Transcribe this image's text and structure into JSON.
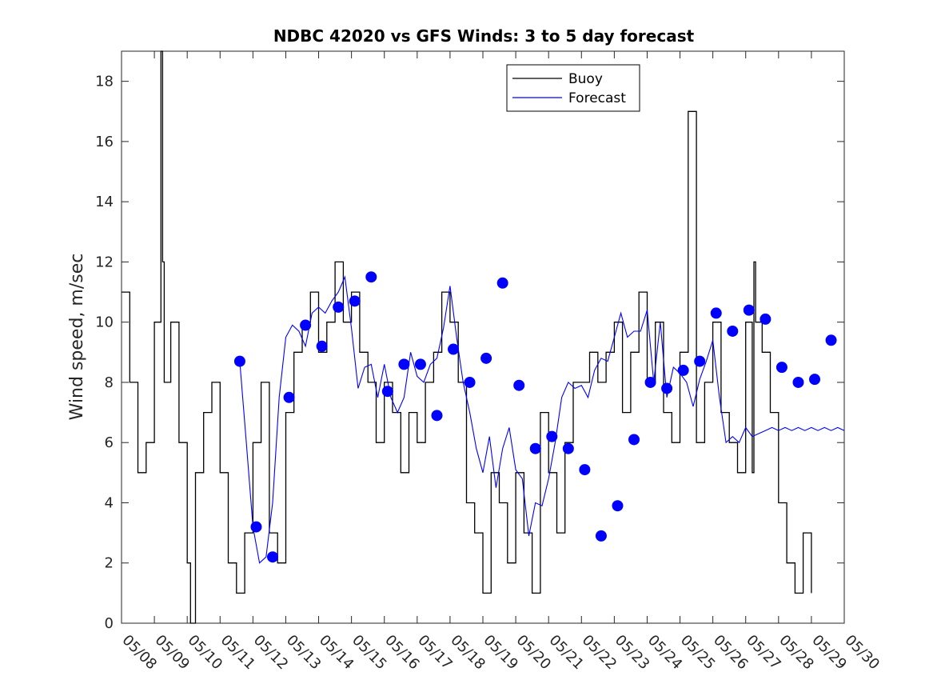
{
  "chart_data": {
    "type": "line",
    "title": "NDBC 42020 vs GFS Winds: 3 to 5 day forecast",
    "xlabel": "",
    "ylabel": "Wind speed, m/sec",
    "xlim": [
      0,
      22
    ],
    "ylim": [
      0,
      19
    ],
    "x_tick_labels": [
      "05/08",
      "05/09",
      "05/10",
      "05/11",
      "05/12",
      "05/13",
      "05/14",
      "05/15",
      "05/16",
      "05/17",
      "05/18",
      "05/19",
      "05/20",
      "05/21",
      "05/22",
      "05/23",
      "05/24",
      "05/25",
      "05/26",
      "05/27",
      "05/28",
      "05/29",
      "05/30"
    ],
    "y_ticks": [
      0,
      2,
      4,
      6,
      8,
      10,
      12,
      14,
      16,
      18
    ],
    "legend": {
      "placement": "top-right",
      "entries": [
        "Buoy",
        "Forecast"
      ]
    },
    "colors": {
      "buoy": "#000000",
      "forecast": "#0000ff"
    },
    "series": [
      {
        "name": "Buoy",
        "color": "#000000",
        "x": [
          0.0,
          0.25,
          0.5,
          0.75,
          1.0,
          1.2,
          1.25,
          1.3,
          1.5,
          1.75,
          2.0,
          2.1,
          2.25,
          2.5,
          2.75,
          3.0,
          3.25,
          3.5,
          3.75,
          4.0,
          4.25,
          4.5,
          4.75,
          5.0,
          5.25,
          5.5,
          5.75,
          6.0,
          6.25,
          6.5,
          6.75,
          7.0,
          7.25,
          7.5,
          7.75,
          8.0,
          8.25,
          8.5,
          8.75,
          9.0,
          9.25,
          9.5,
          9.75,
          10.0,
          10.25,
          10.5,
          10.75,
          11.0,
          11.25,
          11.5,
          11.75,
          12.0,
          12.25,
          12.5,
          12.75,
          13.0,
          13.25,
          13.5,
          13.75,
          14.0,
          14.25,
          14.5,
          14.75,
          15.0,
          15.25,
          15.5,
          15.75,
          16.0,
          16.25,
          16.5,
          16.75,
          17.0,
          17.25,
          17.5,
          17.75,
          18.0,
          18.25,
          18.5,
          18.75,
          19.0,
          19.2,
          19.25,
          19.3,
          19.5,
          19.75,
          20.0,
          20.25,
          20.5,
          20.75,
          21.0,
          21.25,
          21.5
        ],
        "values": [
          11,
          8,
          5,
          6,
          10,
          19,
          12,
          8,
          10,
          6,
          2,
          0,
          5,
          7,
          8,
          5,
          2,
          1,
          3,
          6,
          8,
          3,
          2,
          7,
          9,
          10,
          11,
          9,
          10,
          12,
          10,
          11,
          9,
          8,
          6,
          8,
          7,
          5,
          7,
          6,
          8,
          9,
          11,
          10,
          8,
          4,
          3,
          1,
          5,
          4,
          2,
          5,
          3,
          1,
          7,
          5,
          3,
          6,
          8,
          8,
          9,
          8,
          9,
          10,
          7,
          9,
          11,
          8,
          10,
          7,
          6,
          9,
          17,
          6,
          8,
          10,
          7,
          6,
          5,
          10,
          5,
          12,
          10,
          9,
          7,
          4,
          2,
          1,
          3,
          1,
          null,
          null
        ],
        "note": ""
      },
      {
        "name": "Forecast",
        "color": "#0000ff",
        "x": [
          3.6,
          3.8,
          4.0,
          4.2,
          4.4,
          4.6,
          4.8,
          5.0,
          5.2,
          5.4,
          5.6,
          5.8,
          6.0,
          6.2,
          6.4,
          6.6,
          6.8,
          7.0,
          7.2,
          7.4,
          7.6,
          7.8,
          8.0,
          8.2,
          8.4,
          8.6,
          8.8,
          9.0,
          9.2,
          9.4,
          9.6,
          9.8,
          10.0,
          10.2,
          10.4,
          10.6,
          10.8,
          11.0,
          11.2,
          11.4,
          11.6,
          11.8,
          12.0,
          12.2,
          12.4,
          12.6,
          12.8,
          13.0,
          13.2,
          13.4,
          13.6,
          13.8,
          14.0,
          14.2,
          14.4,
          14.6,
          14.8,
          15.0,
          15.2,
          15.4,
          15.6,
          15.8,
          16.0,
          16.2,
          16.4,
          16.6,
          16.8,
          17.0,
          17.2,
          17.4,
          17.6,
          17.8,
          18.0,
          18.2,
          18.4,
          18.6,
          18.8,
          19.0,
          19.2,
          19.4,
          19.6,
          19.8,
          20.0,
          20.2,
          20.4,
          20.6,
          20.8,
          21.0,
          21.2,
          21.4,
          21.6,
          21.8,
          22.0
        ],
        "values": [
          8.7,
          6,
          3.2,
          2,
          2.2,
          4,
          7.5,
          9.5,
          9.9,
          9.7,
          9.2,
          10.3,
          10.5,
          10.3,
          10.7,
          11,
          11.5,
          9.8,
          7.8,
          8.5,
          8.6,
          7.5,
          8.6,
          7.5,
          7,
          7.5,
          9,
          8.2,
          8,
          8.6,
          8.8,
          9.8,
          11.2,
          9.5,
          8,
          7,
          5.8,
          5,
          6.2,
          4.5,
          5.8,
          6.5,
          5.1,
          4.8,
          2.9,
          4,
          3.9,
          4.8,
          6,
          7.5,
          8,
          7.8,
          7.9,
          7.5,
          8.4,
          8.8,
          8.7,
          9.5,
          10.3,
          9.5,
          9.7,
          9.7,
          10.4,
          8,
          10,
          7.5,
          8.5,
          8.3,
          8,
          7.2,
          8.1,
          8.7,
          9.4,
          7.5,
          6,
          6.2,
          6,
          6.5,
          6.2,
          6.3,
          6.4,
          6.5,
          6.4,
          6.5,
          6.4,
          6.5,
          6.4,
          6.5,
          6.4,
          6.5,
          6.4,
          6.5,
          6.4
        ]
      }
    ],
    "forecast_markers": {
      "x": [
        3.6,
        4.1,
        4.6,
        5.1,
        5.6,
        6.1,
        6.6,
        7.1,
        7.6,
        8.1,
        8.6,
        9.1,
        9.6,
        10.1,
        10.6,
        11.1,
        11.6,
        12.1,
        12.6,
        13.1,
        13.6,
        14.1,
        14.6,
        15.1,
        15.6,
        16.1,
        16.6,
        17.1,
        17.6,
        18.1,
        18.6,
        19.1,
        19.6,
        20.1,
        20.6,
        21.1,
        21.6
      ],
      "values": [
        8.7,
        3.2,
        2.2,
        7.5,
        9.9,
        9.2,
        10.5,
        10.7,
        11.5,
        7.7,
        8.6,
        8.6,
        6.9,
        9.1,
        8.0,
        8.8,
        11.3,
        7.9,
        5.8,
        6.2,
        5.8,
        5.1,
        2.9,
        3.9,
        6.1,
        8.0,
        7.8,
        8.4,
        8.7,
        10.3,
        9.7,
        10.4,
        10.1,
        8.5,
        8.0,
        8.1,
        9.4
      ]
    }
  }
}
